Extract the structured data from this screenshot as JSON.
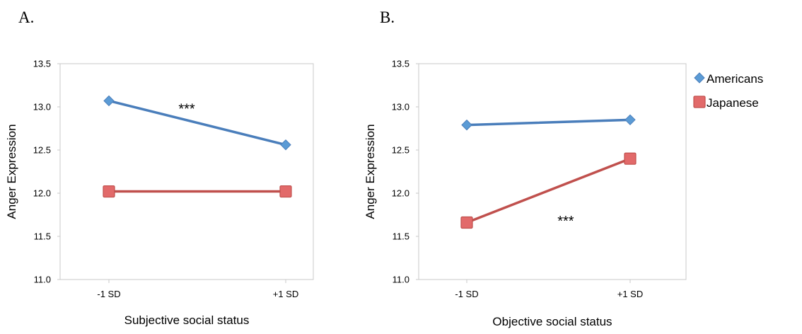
{
  "legend": {
    "entries": [
      {
        "name": "Americans",
        "color": "#5b9bd5",
        "stroke": "#4a7ebb",
        "marker": "diamond"
      },
      {
        "name": "Japanese",
        "color": "#e26a6a",
        "stroke": "#c0504d",
        "marker": "square"
      }
    ],
    "placement": "right"
  },
  "chart_data": [
    {
      "type": "line",
      "panel_label": "A.",
      "xlabel": "Subjective social status",
      "ylabel": "Anger Expression",
      "categories": [
        "-1 SD",
        "+1 SD"
      ],
      "ylim": [
        11.0,
        13.5
      ],
      "yticks": [
        "11.0",
        "11.5",
        "12.0",
        "12.5",
        "13.0",
        "13.5"
      ],
      "grid": false,
      "series": [
        {
          "name": "Americans",
          "values": [
            13.07,
            12.56
          ]
        },
        {
          "name": "Japanese",
          "values": [
            12.02,
            12.02
          ]
        }
      ],
      "annotation": {
        "text": "***",
        "x": 0.5,
        "y": 13.02
      }
    },
    {
      "type": "line",
      "panel_label": "B.",
      "xlabel": "Objective social status",
      "ylabel": "Anger Expression",
      "categories": [
        "-1 SD",
        "+1 SD"
      ],
      "ylim": [
        11.0,
        13.5
      ],
      "yticks": [
        "11.0",
        "11.5",
        "12.0",
        "12.5",
        "13.0",
        "13.5"
      ],
      "grid": false,
      "series": [
        {
          "name": "Americans",
          "values": [
            12.79,
            12.85
          ]
        },
        {
          "name": "Japanese",
          "values": [
            11.66,
            12.4
          ]
        }
      ],
      "annotation": {
        "text": "***",
        "x": 0.55,
        "y": 11.72
      }
    }
  ]
}
